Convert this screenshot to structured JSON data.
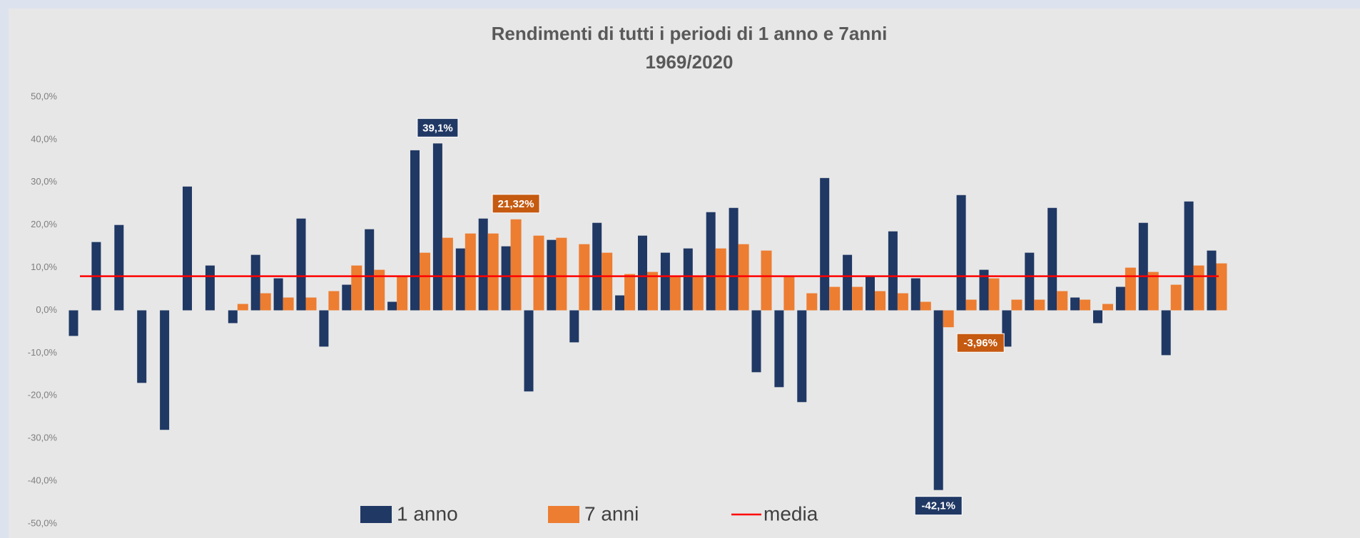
{
  "chart_data": {
    "type": "bar",
    "title": "Rendimenti di tutti i periodi di 1 anno e 7anni",
    "subtitle": "1969/2020",
    "categories": [
      null,
      null,
      null,
      null,
      null,
      null,
      null,
      null,
      null,
      null,
      null,
      null,
      null,
      null,
      null,
      null,
      null,
      null,
      null,
      null,
      null,
      null,
      null,
      null,
      null,
      null,
      null,
      null,
      null,
      null,
      null,
      null,
      null,
      null,
      null,
      null,
      null,
      null,
      null,
      null,
      null,
      null,
      null,
      null,
      null,
      null,
      null,
      null,
      null,
      null,
      null
    ],
    "series": [
      {
        "name": "1 anno",
        "color": "#203864",
        "values": [
          -6,
          16,
          20,
          -17,
          -28,
          29,
          10.5,
          -3,
          13,
          7.5,
          21.5,
          -8.5,
          6,
          19,
          2,
          37.5,
          39.1,
          14.5,
          21.5,
          15,
          -19,
          16.5,
          -7.5,
          20.5,
          3.5,
          17.5,
          13.5,
          14.5,
          23,
          24,
          -14.5,
          -18,
          -21.5,
          31,
          13,
          8,
          18.5,
          7.5,
          -42.1,
          27,
          9.5,
          -8.5,
          13.5,
          24,
          3,
          -3,
          5.5,
          20.5,
          -10.5,
          25.5,
          14
        ],
        "value_labels": [
          null,
          null,
          null,
          null,
          null,
          null,
          null,
          null,
          null,
          null,
          null,
          null,
          null,
          null,
          null,
          null,
          "39,1%",
          null,
          null,
          null,
          null,
          null,
          null,
          null,
          null,
          null,
          null,
          null,
          null,
          null,
          null,
          null,
          null,
          null,
          null,
          null,
          null,
          null,
          "-42,1%",
          null,
          null,
          null,
          null,
          null,
          null,
          null,
          null,
          null,
          null,
          null,
          null
        ]
      },
      {
        "name": "7 anni",
        "color": "#ed7d31",
        "values": [
          null,
          null,
          null,
          null,
          null,
          null,
          null,
          1.5,
          4,
          3,
          3,
          4.5,
          10.5,
          9.5,
          8,
          13.5,
          17,
          18,
          18,
          21.32,
          17.5,
          17,
          15.5,
          13.5,
          8.5,
          9,
          8,
          8,
          14.5,
          15.5,
          14,
          8,
          4,
          5.5,
          5.5,
          4.5,
          4,
          2,
          -3.96,
          2.5,
          7.5,
          2.5,
          2.5,
          4.5,
          2.5,
          1.5,
          10,
          9,
          6,
          10.5,
          11
        ],
        "value_labels": [
          null,
          null,
          null,
          null,
          null,
          null,
          null,
          null,
          null,
          null,
          null,
          null,
          null,
          null,
          null,
          null,
          null,
          null,
          null,
          "21,32%",
          null,
          null,
          null,
          null,
          null,
          null,
          null,
          null,
          null,
          null,
          null,
          null,
          null,
          null,
          null,
          null,
          null,
          null,
          "-3,96%",
          null,
          null,
          null,
          null,
          null,
          null,
          null,
          null,
          null,
          null,
          null,
          null
        ],
        "label_color": "#c55a11"
      }
    ],
    "reference_line": {
      "name": "media",
      "value": 8,
      "color": "#ff0000"
    },
    "ylim": [
      -50,
      50
    ],
    "yticks": [
      {
        "value": 50,
        "label": "50,0%"
      },
      {
        "value": 40,
        "label": "40,0%"
      },
      {
        "value": 30,
        "label": "30,0%"
      },
      {
        "value": 20,
        "label": "20,0%"
      },
      {
        "value": 10,
        "label": "10,0%"
      },
      {
        "value": 0,
        "label": "0,0%"
      },
      {
        "value": -10,
        "label": "-10,0%"
      },
      {
        "value": -20,
        "label": "-20,0%"
      },
      {
        "value": -30,
        "label": "-30,0%"
      },
      {
        "value": -40,
        "label": "-40,0%"
      },
      {
        "value": -50,
        "label": "-50,0%"
      }
    ],
    "grid": false,
    "legend": "bottom"
  }
}
